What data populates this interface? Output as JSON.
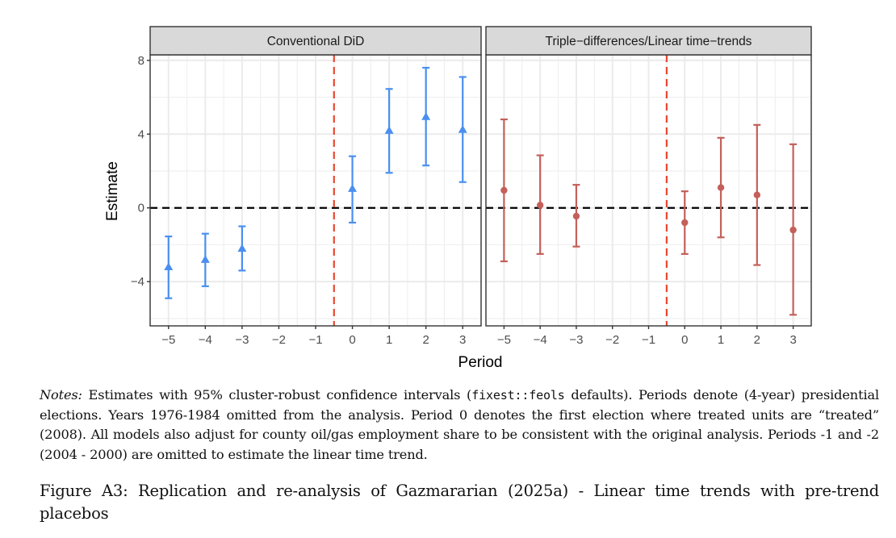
{
  "chart_data": {
    "type": "scatter",
    "subtype": "coefficient-plot-with-error-bars",
    "xlabel": "Period",
    "ylabel": "Estimate",
    "ylim": [
      -6.4,
      8.3
    ],
    "yticks": [
      -4,
      0,
      4,
      8
    ],
    "ytick_labels": [
      "−4",
      "0",
      "4",
      "8"
    ],
    "xlim": [
      -5.5,
      3.5
    ],
    "xticks": [
      -5,
      -4,
      -3,
      -2,
      -1,
      0,
      1,
      2,
      3
    ],
    "xtick_labels": [
      "−5",
      "−4",
      "−3",
      "−2",
      "−1",
      "0",
      "1",
      "2",
      "3"
    ],
    "grid": true,
    "reference_lines": {
      "horizontal_zero": {
        "y": 0,
        "color": "#000000",
        "style": "dashed"
      },
      "treatment_onset": {
        "x": -0.5,
        "color": "#e8472f",
        "style": "dashed"
      }
    },
    "panels": [
      {
        "title": "Conventional DiD",
        "marker": "triangle",
        "color": "#4a8ff0",
        "points": [
          {
            "x": -5,
            "estimate": -3.2,
            "ci_low": -4.9,
            "ci_high": -1.55
          },
          {
            "x": -4,
            "estimate": -2.8,
            "ci_low": -4.25,
            "ci_high": -1.4
          },
          {
            "x": -3,
            "estimate": -2.2,
            "ci_low": -3.4,
            "ci_high": -1.0
          },
          {
            "x": 0,
            "estimate": 1.05,
            "ci_low": -0.8,
            "ci_high": 2.8
          },
          {
            "x": 1,
            "estimate": 4.2,
            "ci_low": 1.9,
            "ci_high": 6.45
          },
          {
            "x": 2,
            "estimate": 4.95,
            "ci_low": 2.3,
            "ci_high": 7.6
          },
          {
            "x": 3,
            "estimate": 4.25,
            "ci_low": 1.4,
            "ci_high": 7.1
          }
        ]
      },
      {
        "title": "Triple−differences/Linear time−trends",
        "marker": "circle",
        "color": "#c4605a",
        "points": [
          {
            "x": -5,
            "estimate": 0.95,
            "ci_low": -2.9,
            "ci_high": 4.8
          },
          {
            "x": -4,
            "estimate": 0.15,
            "ci_low": -2.5,
            "ci_high": 2.85
          },
          {
            "x": -3,
            "estimate": -0.45,
            "ci_low": -2.1,
            "ci_high": 1.25
          },
          {
            "x": 0,
            "estimate": -0.8,
            "ci_low": -2.5,
            "ci_high": 0.9
          },
          {
            "x": 1,
            "estimate": 1.1,
            "ci_low": -1.6,
            "ci_high": 3.8
          },
          {
            "x": 2,
            "estimate": 0.7,
            "ci_low": -3.1,
            "ci_high": 4.5
          },
          {
            "x": 3,
            "estimate": -1.2,
            "ci_low": -5.8,
            "ci_high": 3.45
          }
        ]
      }
    ]
  },
  "notes": {
    "label": "Notes:",
    "text_before_code": " Estimates with 95% cluster-robust confidence intervals (",
    "code": "fixest::feols",
    "text_after_code": " defaults). Periods denote (4-year) presidential elections. Years 1976-1984 omitted from the analysis. Period 0 denotes the first election where treated units are “treated” (2008). All models also adjust for county oil/gas employment share to be consistent with the original analysis. Periods -1 and -2 (2004 - 2000) are omitted to estimate the linear time trend."
  },
  "caption": "Figure A3: Replication and re-analysis of Gazmararian (2025a) - Linear time trends with pre-trend placebos"
}
